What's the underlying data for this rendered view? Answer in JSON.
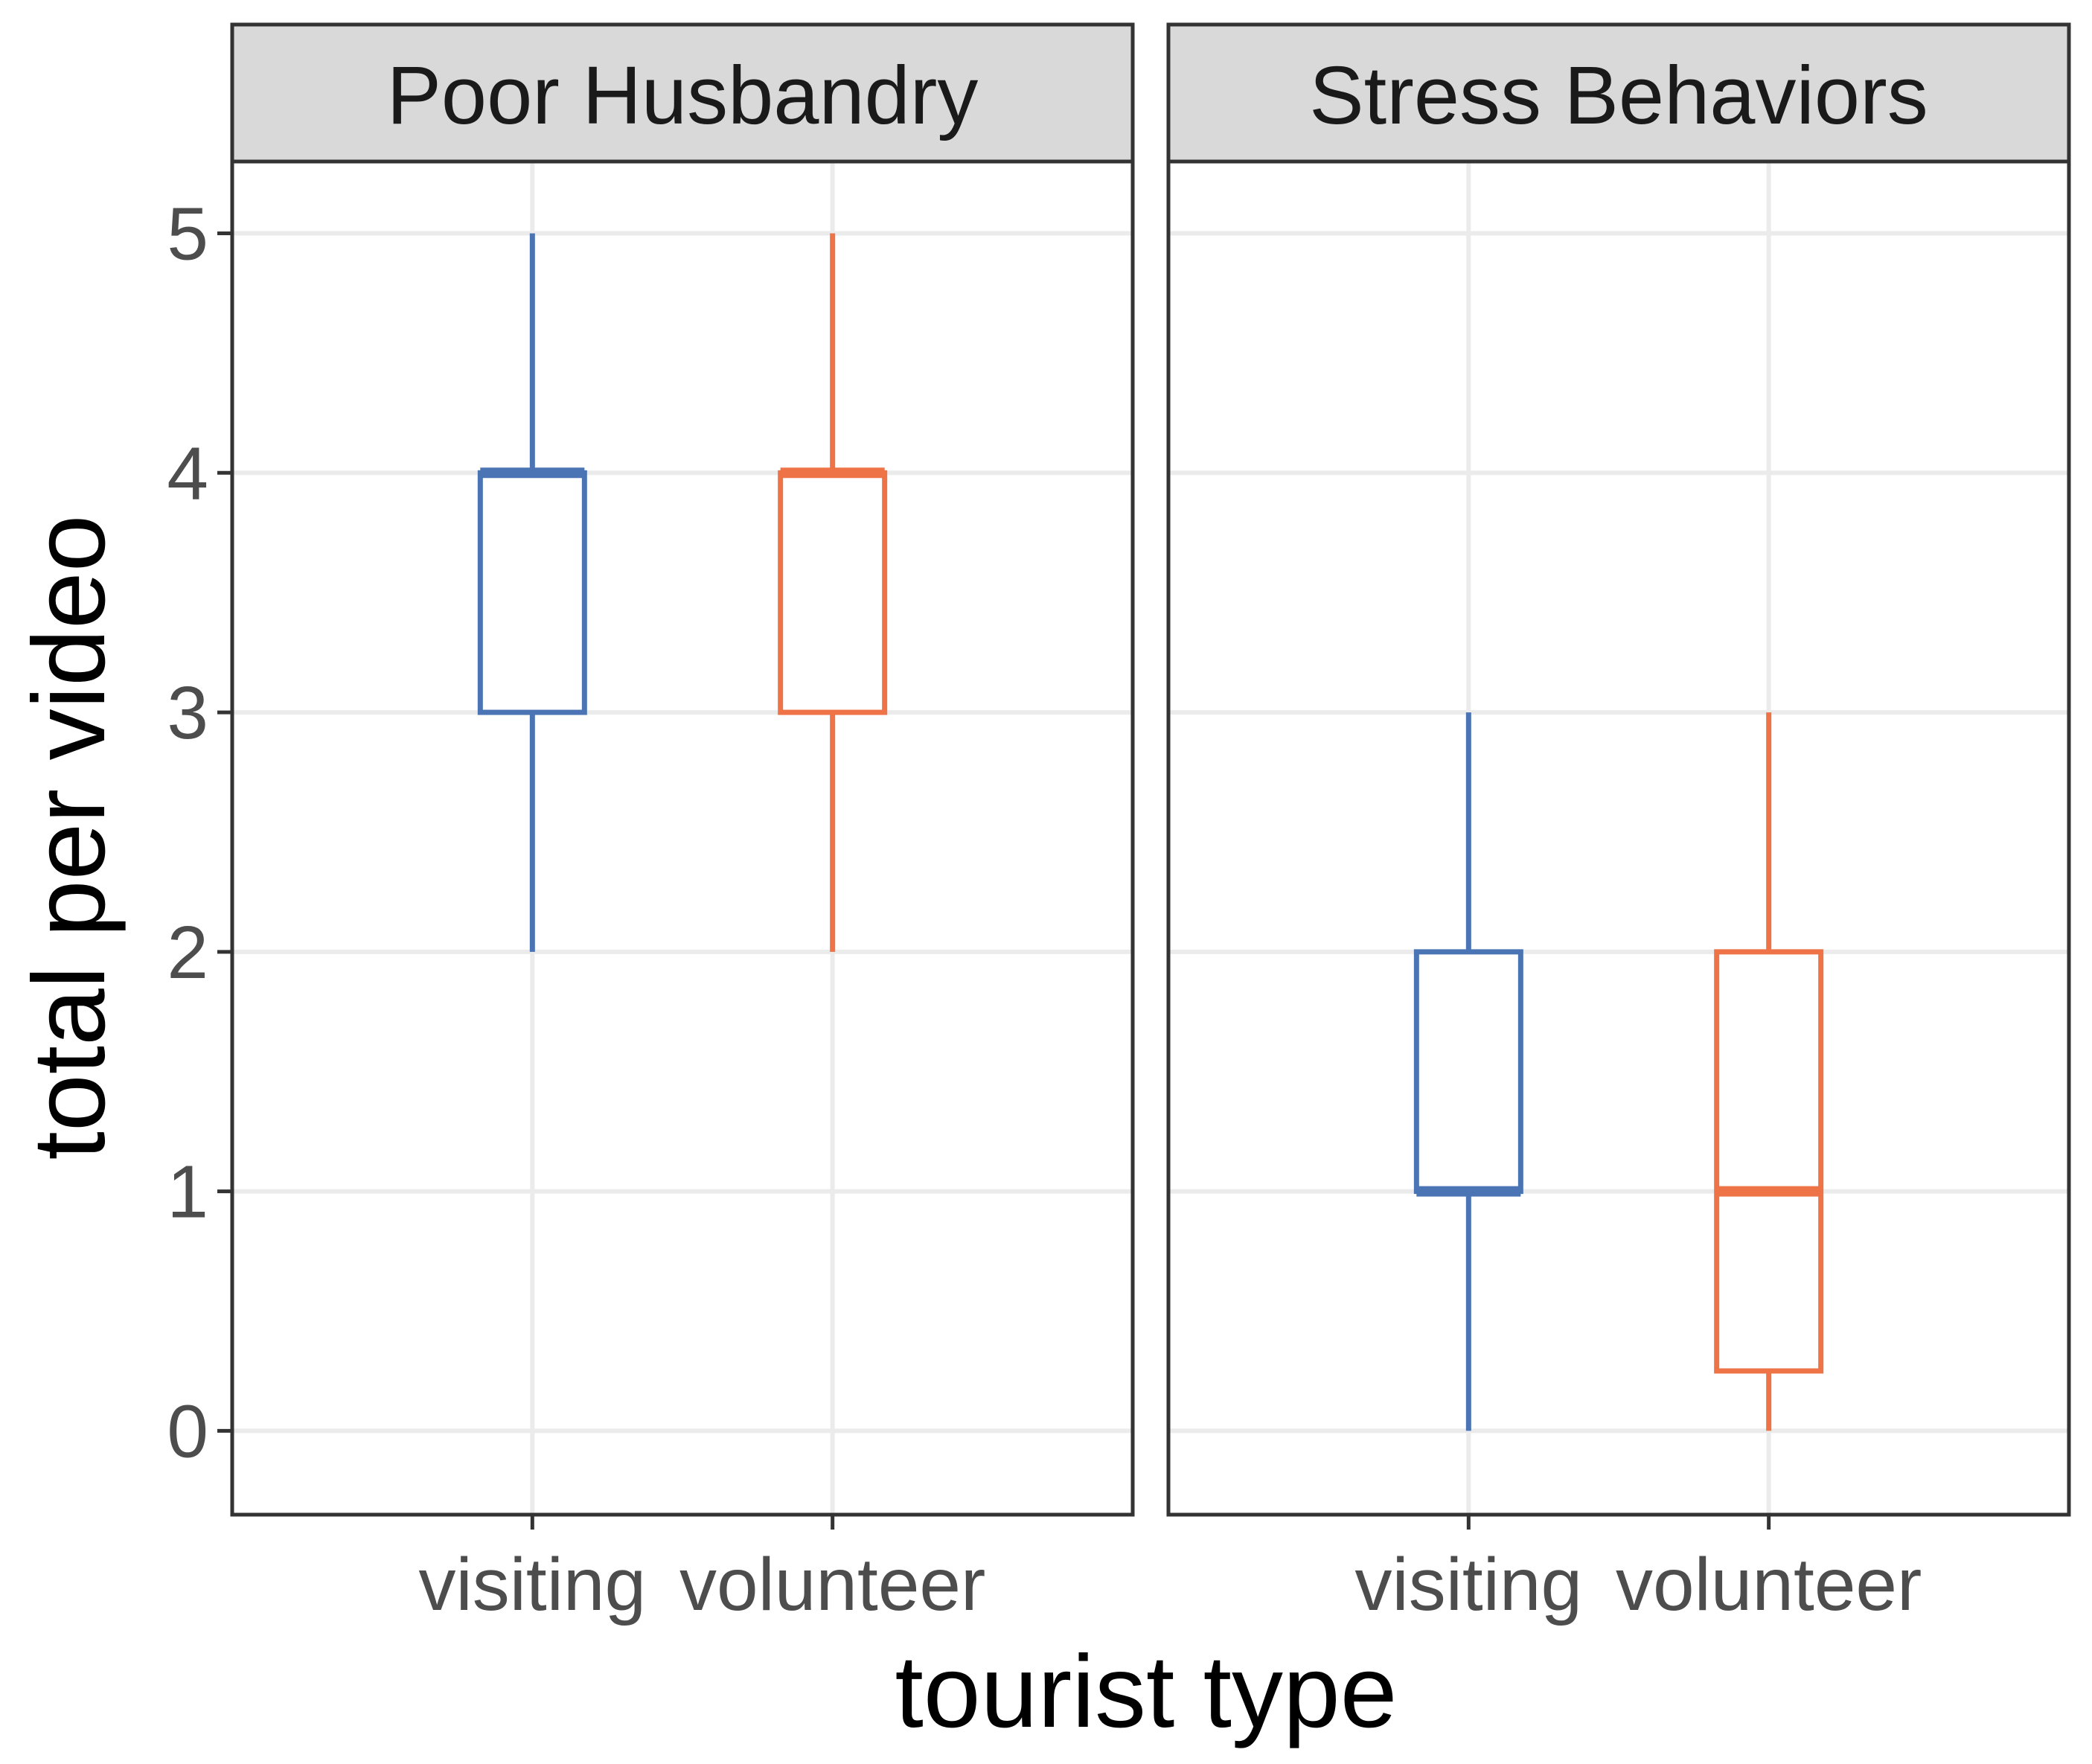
{
  "chart_data": {
    "type": "boxplot",
    "xlabel": "tourist type",
    "ylabel": "total per video",
    "ylim": [
      -0.35,
      5.3
    ],
    "y_ticks": [
      "0",
      "1",
      "2",
      "3",
      "4",
      "5"
    ],
    "grid": true,
    "categories": [
      "visiting",
      "volunteer"
    ],
    "colors": {
      "visiting": "#4a74b4",
      "volunteer": "#ee7347"
    },
    "panels": [
      {
        "title": "Poor Husbandry",
        "boxes": [
          {
            "category": "visiting",
            "min": 2,
            "q1": 3,
            "median": 4,
            "q3": 4,
            "max": 5
          },
          {
            "category": "volunteer",
            "min": 2,
            "q1": 3,
            "median": 4,
            "q3": 4,
            "max": 5
          }
        ]
      },
      {
        "title": "Stress Behaviors",
        "boxes": [
          {
            "category": "visiting",
            "min": 0,
            "q1": 1,
            "median": 1,
            "q3": 2,
            "max": 3
          },
          {
            "category": "volunteer",
            "min": 0,
            "q1": 0.25,
            "median": 1,
            "q3": 2,
            "max": 3
          }
        ]
      }
    ]
  }
}
